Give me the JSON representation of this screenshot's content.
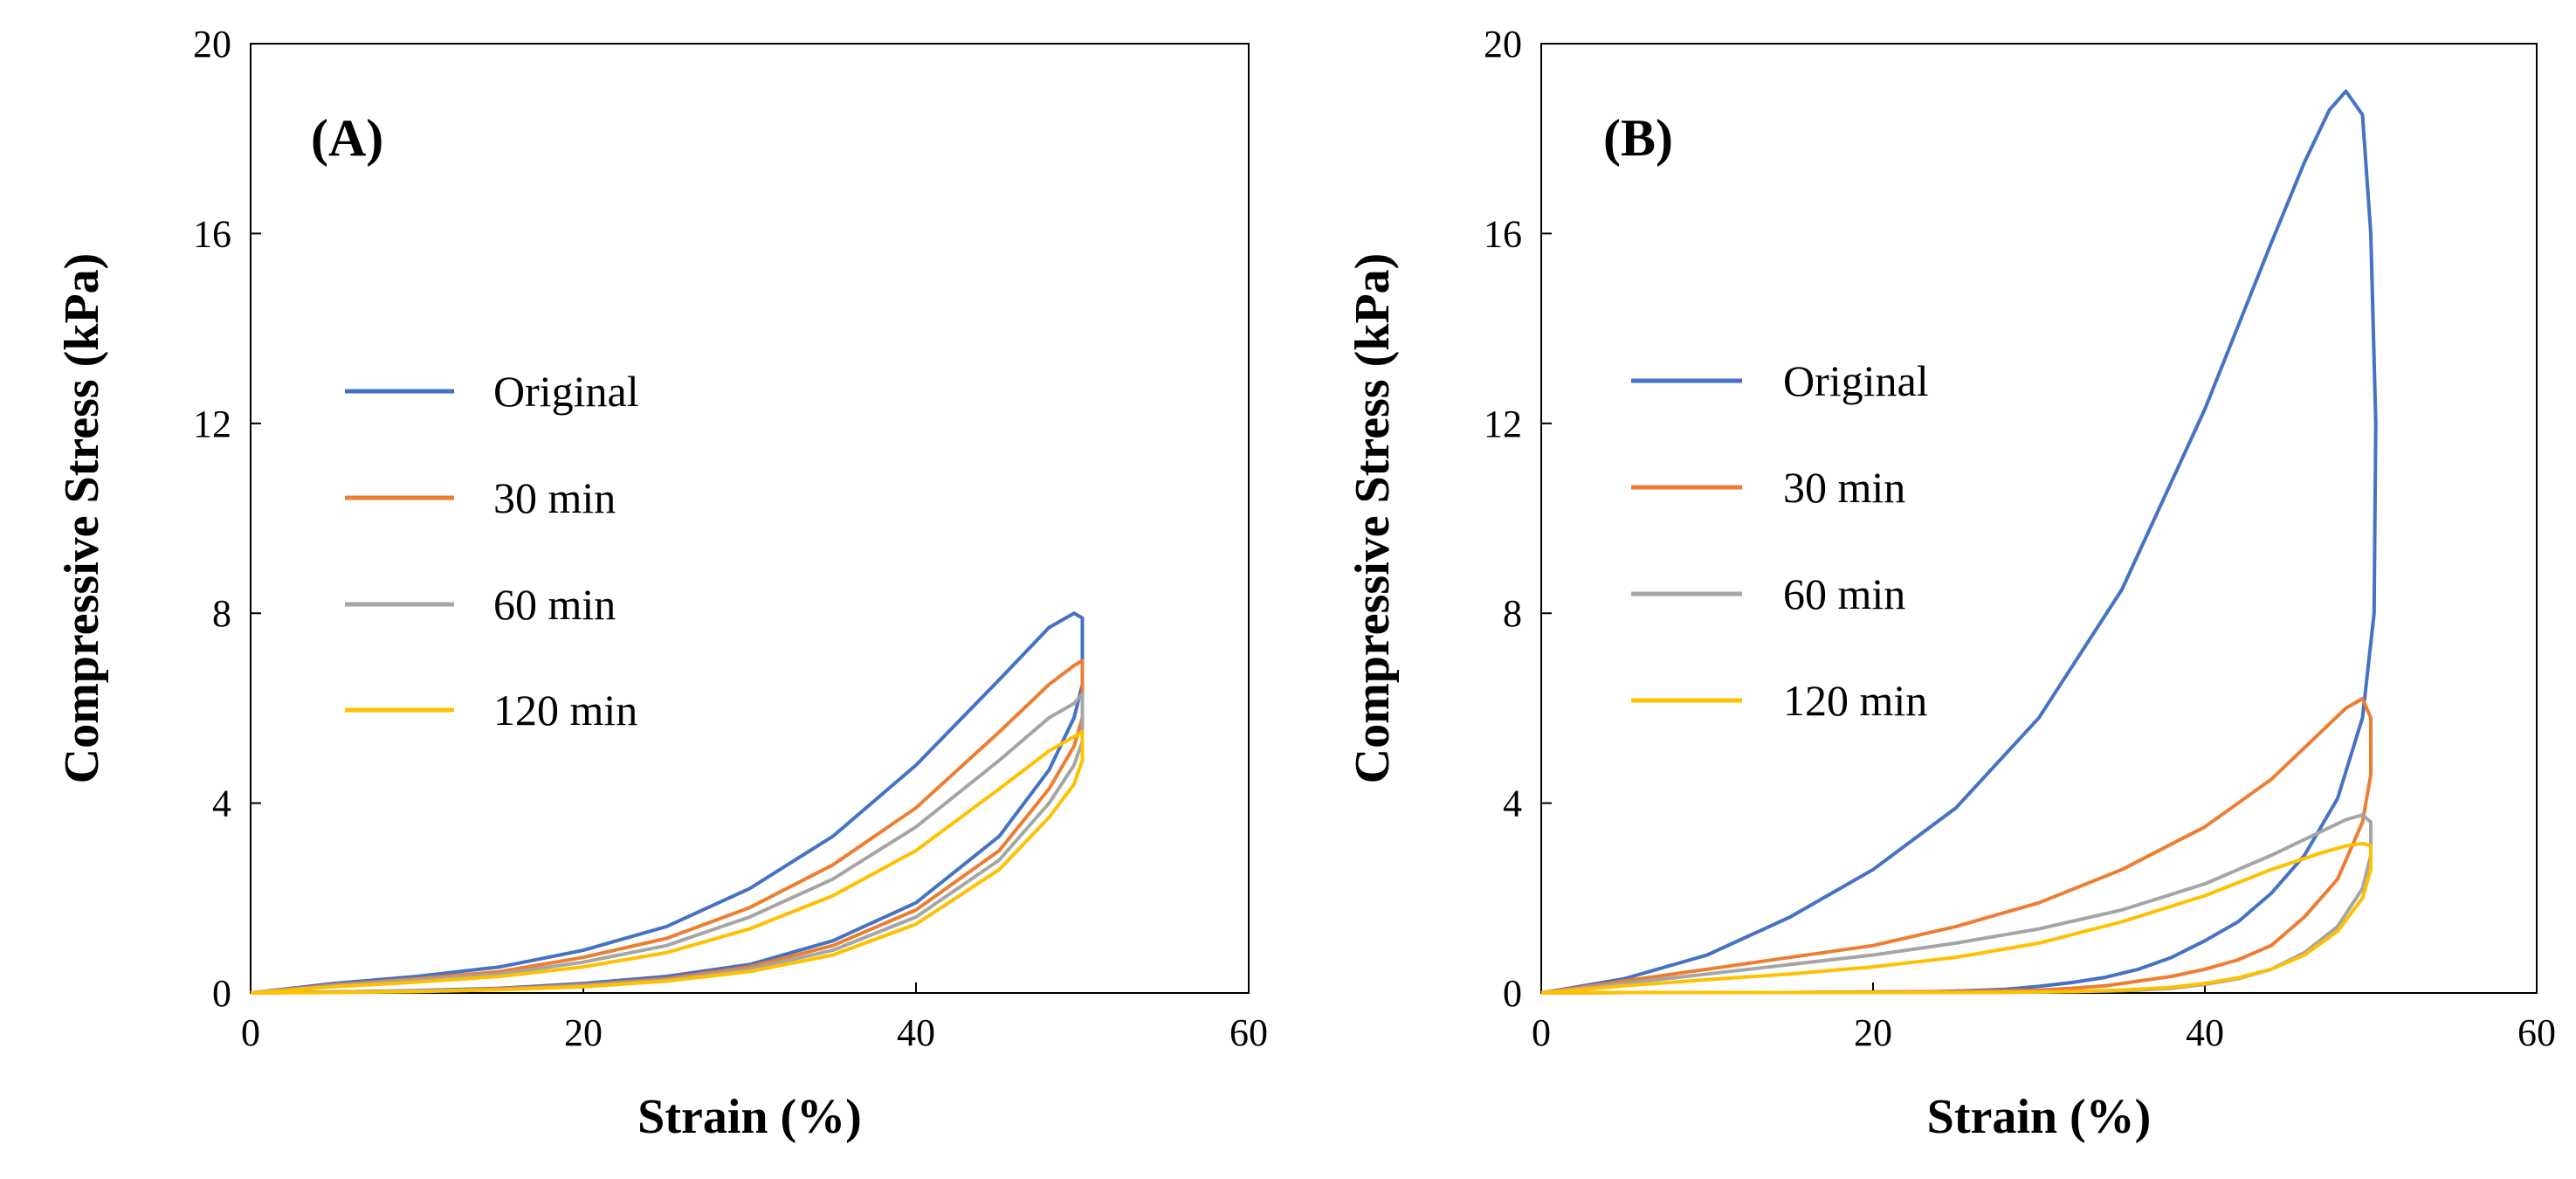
{
  "chart_data": [
    {
      "type": "line",
      "panel_label": "(A)",
      "xlabel": "Strain (%)",
      "ylabel": "Compressive Stress (kPa)",
      "xlim": [
        0,
        60
      ],
      "ylim": [
        0,
        20
      ],
      "xticks": [
        0,
        20,
        40,
        60
      ],
      "yticks": [
        0,
        4,
        8,
        12,
        16,
        20
      ],
      "legend_position": "center-left",
      "series": [
        {
          "name": "Original",
          "color": "#4472C4",
          "x": [
            0,
            5,
            10,
            15,
            20,
            25,
            30,
            35,
            40,
            45,
            48,
            49.5,
            50,
            50,
            49.5,
            48,
            45,
            40,
            35,
            30,
            25,
            20,
            15,
            10,
            5,
            0
          ],
          "y": [
            0,
            0.2,
            0.35,
            0.55,
            0.9,
            1.4,
            2.2,
            3.3,
            4.8,
            6.6,
            7.7,
            8.0,
            7.9,
            6.5,
            5.8,
            4.7,
            3.3,
            1.9,
            1.1,
            0.6,
            0.35,
            0.2,
            0.1,
            0.05,
            0.02,
            0
          ]
        },
        {
          "name": "30 min",
          "color": "#ED7D31",
          "x": [
            0,
            5,
            10,
            15,
            20,
            25,
            30,
            35,
            40,
            45,
            48,
            49.5,
            50,
            50,
            49.5,
            48,
            45,
            40,
            35,
            30,
            25,
            20,
            15,
            10,
            5,
            0
          ],
          "y": [
            0,
            0.17,
            0.3,
            0.45,
            0.75,
            1.15,
            1.8,
            2.7,
            3.9,
            5.5,
            6.5,
            6.9,
            7.0,
            5.8,
            5.2,
            4.3,
            3.0,
            1.75,
            1.0,
            0.55,
            0.3,
            0.17,
            0.09,
            0.04,
            0.02,
            0
          ]
        },
        {
          "name": "60 min",
          "color": "#A5A5A5",
          "x": [
            0,
            5,
            10,
            15,
            20,
            25,
            30,
            35,
            40,
            45,
            48,
            49.5,
            50,
            50,
            49.5,
            48,
            45,
            40,
            35,
            30,
            25,
            20,
            15,
            10,
            5,
            0
          ],
          "y": [
            0,
            0.15,
            0.27,
            0.4,
            0.65,
            1.0,
            1.6,
            2.4,
            3.5,
            4.9,
            5.8,
            6.1,
            6.3,
            5.3,
            4.8,
            4.0,
            2.8,
            1.6,
            0.9,
            0.5,
            0.27,
            0.15,
            0.08,
            0.04,
            0.02,
            0
          ]
        },
        {
          "name": "120 min",
          "color": "#FFC000",
          "x": [
            0,
            5,
            10,
            15,
            20,
            25,
            30,
            35,
            40,
            45,
            48,
            49.5,
            50,
            50,
            49.5,
            48,
            45,
            40,
            35,
            30,
            25,
            20,
            15,
            10,
            5,
            0
          ],
          "y": [
            0,
            0.13,
            0.23,
            0.35,
            0.55,
            0.85,
            1.35,
            2.05,
            3.0,
            4.3,
            5.1,
            5.4,
            5.5,
            4.9,
            4.4,
            3.7,
            2.6,
            1.45,
            0.8,
            0.45,
            0.25,
            0.13,
            0.07,
            0.03,
            0.01,
            0
          ]
        }
      ]
    },
    {
      "type": "line",
      "panel_label": "(B)",
      "xlabel": "Strain (%)",
      "ylabel": "Compressive Stress (kPa)",
      "xlim": [
        0,
        60
      ],
      "ylim": [
        0,
        20
      ],
      "xticks": [
        0,
        20,
        40,
        60
      ],
      "yticks": [
        0,
        4,
        8,
        12,
        16,
        20
      ],
      "legend_position": "center-left",
      "series": [
        {
          "name": "Original",
          "color": "#4472C4",
          "x": [
            0,
            5,
            10,
            15,
            20,
            25,
            30,
            35,
            40,
            44,
            46,
            47.5,
            48.5,
            49.5,
            50,
            50.3,
            50.2,
            49.5,
            48,
            46,
            44,
            42,
            40,
            38,
            36,
            34,
            32,
            30,
            28,
            26,
            24,
            22,
            20,
            15,
            10,
            5,
            0
          ],
          "y": [
            0,
            0.3,
            0.8,
            1.6,
            2.6,
            3.9,
            5.8,
            8.5,
            12.3,
            15.8,
            17.5,
            18.6,
            19.0,
            18.5,
            16.0,
            12.0,
            8.0,
            5.8,
            4.1,
            2.9,
            2.1,
            1.5,
            1.1,
            0.75,
            0.5,
            0.33,
            0.22,
            0.14,
            0.08,
            0.05,
            0.03,
            0.02,
            0.02,
            0.01,
            0.01,
            0.01,
            0
          ]
        },
        {
          "name": "30 min",
          "color": "#ED7D31",
          "x": [
            0,
            5,
            10,
            15,
            20,
            25,
            30,
            35,
            40,
            44,
            47,
            48.5,
            49.5,
            50,
            50,
            49.5,
            48,
            46,
            44,
            42,
            40,
            38,
            36,
            34,
            32,
            30,
            25,
            20,
            15,
            10,
            5,
            0
          ],
          "y": [
            0,
            0.25,
            0.5,
            0.75,
            1.0,
            1.4,
            1.9,
            2.6,
            3.5,
            4.5,
            5.5,
            6.0,
            6.2,
            5.8,
            4.6,
            3.6,
            2.4,
            1.6,
            1.0,
            0.7,
            0.5,
            0.35,
            0.25,
            0.15,
            0.1,
            0.06,
            0.03,
            0.02,
            0.01,
            0.01,
            0.01,
            0
          ]
        },
        {
          "name": "60 min",
          "color": "#A5A5A5",
          "x": [
            0,
            5,
            10,
            15,
            20,
            25,
            30,
            35,
            40,
            44,
            47,
            48.5,
            49.5,
            50,
            50,
            49.5,
            48,
            46,
            44,
            42,
            40,
            38,
            36,
            34,
            32,
            30,
            25,
            20,
            15,
            10,
            5,
            0
          ],
          "y": [
            0,
            0.2,
            0.4,
            0.6,
            0.8,
            1.05,
            1.35,
            1.75,
            2.3,
            2.9,
            3.4,
            3.65,
            3.75,
            3.6,
            2.9,
            2.2,
            1.4,
            0.85,
            0.5,
            0.3,
            0.18,
            0.1,
            0.06,
            0.04,
            0.03,
            0.02,
            0.01,
            0.01,
            0.01,
            0.01,
            0.01,
            0
          ]
        },
        {
          "name": "120 min",
          "color": "#FFC000",
          "x": [
            0,
            5,
            10,
            15,
            20,
            25,
            30,
            35,
            40,
            44,
            47,
            48.5,
            49.5,
            50,
            50,
            49.5,
            48,
            46,
            44,
            42,
            40,
            38,
            36,
            34,
            32,
            30,
            25,
            20,
            15,
            10,
            5,
            0
          ],
          "y": [
            0,
            0.15,
            0.28,
            0.4,
            0.55,
            0.75,
            1.05,
            1.5,
            2.05,
            2.6,
            2.95,
            3.1,
            3.15,
            3.1,
            2.6,
            2.0,
            1.3,
            0.8,
            0.5,
            0.32,
            0.2,
            0.12,
            0.08,
            0.05,
            0.03,
            0.02,
            0.01,
            0.01,
            0.01,
            0.01,
            0.01,
            0
          ]
        }
      ]
    }
  ]
}
